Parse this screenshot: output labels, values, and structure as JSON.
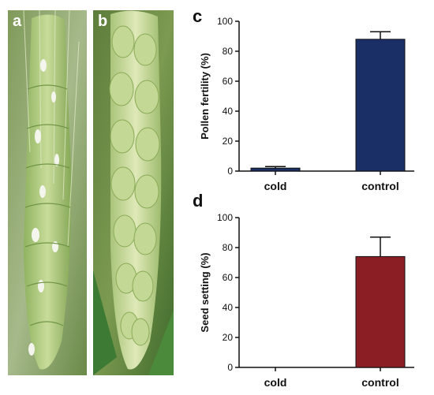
{
  "panels": {
    "a": {
      "label": "a"
    },
    "b": {
      "label": "b"
    },
    "c": {
      "label": "c"
    },
    "d": {
      "label": "d"
    }
  },
  "chart_data": [
    {
      "panel": "c",
      "type": "bar",
      "categories": [
        "cold",
        "control"
      ],
      "values": [
        2,
        88
      ],
      "errors": [
        1,
        5
      ],
      "colors": [
        "#1a2f66",
        "#1a2f66"
      ],
      "ylabel": "Pollen fertility (%)",
      "ylim": [
        0,
        100
      ],
      "yticks": [
        0,
        20,
        40,
        60,
        80,
        100
      ],
      "grid": false
    },
    {
      "panel": "d",
      "type": "bar",
      "categories": [
        "cold",
        "control"
      ],
      "values": [
        0,
        74
      ],
      "errors": [
        0,
        13
      ],
      "colors": [
        "#8b1e24",
        "#8b1e24"
      ],
      "ylabel": "Seed setting (%)",
      "ylim": [
        0,
        100
      ],
      "yticks": [
        0,
        20,
        40,
        60,
        80,
        100
      ],
      "grid": false
    }
  ]
}
